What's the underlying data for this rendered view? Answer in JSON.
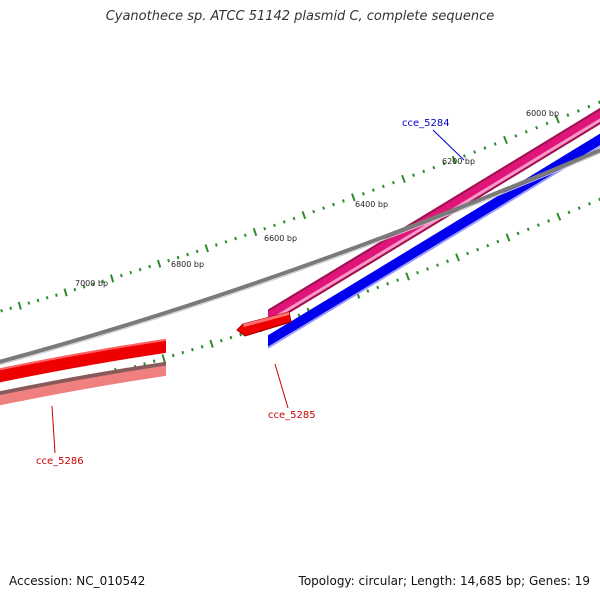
{
  "title": "Cyanothece sp. ATCC 51142 plasmid C, complete sequence",
  "footer": {
    "accession": "Accession: NC_010542",
    "summary": "Topology: circular; Length: 14,685 bp; Genes: 19"
  },
  "ruler": {
    "labels": [
      "6000 bp",
      "6200 bp",
      "6400 bp",
      "6600 bp",
      "6800 bp",
      "7000 bp"
    ]
  },
  "genes": [
    {
      "name": "cce_5284",
      "color": "#0000cc"
    },
    {
      "name": "cce_5285",
      "color": "#cc0000"
    },
    {
      "name": "cce_5286",
      "color": "#cc0000"
    }
  ],
  "colors": {
    "tick": "#2e8b2e",
    "forward_gene": "#e0157a",
    "forward_cds": "#0000ee",
    "reverse_cds": "#ee0000",
    "reverse_gene": "#f08080",
    "backbone": "#808080"
  }
}
